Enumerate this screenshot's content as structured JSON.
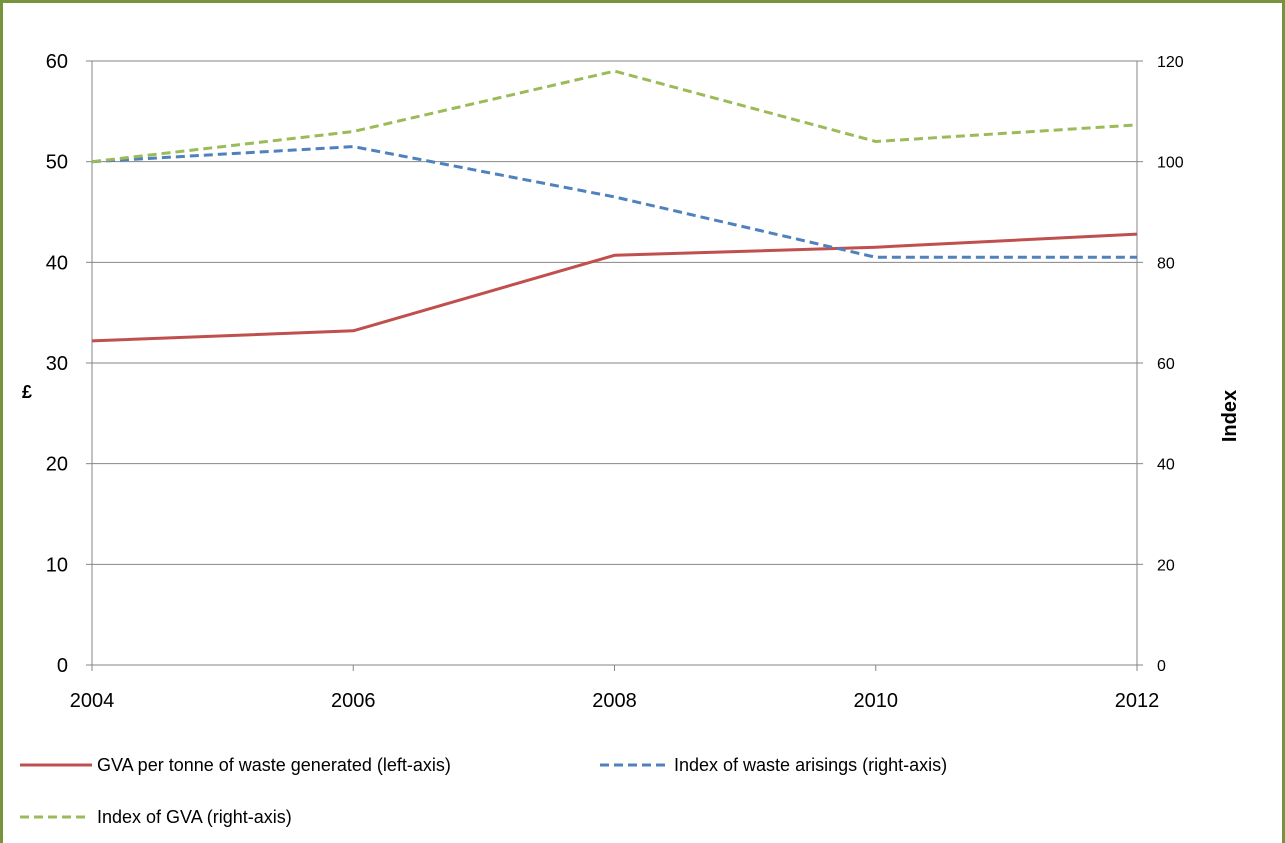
{
  "chart_data": {
    "type": "line",
    "categories": [
      "2004",
      "2006",
      "2008",
      "2010",
      "2012"
    ],
    "x": [
      2004,
      2006,
      2008,
      2010,
      2012
    ],
    "xlim": [
      2004,
      2012
    ],
    "y_left": {
      "label": "£",
      "ylim": [
        0,
        60
      ],
      "ticks": [
        "0",
        "10",
        "20",
        "30",
        "40",
        "50",
        "60"
      ]
    },
    "y_right": {
      "label": "Index",
      "ylim": [
        0,
        120
      ],
      "ticks": [
        "0",
        "20",
        "40",
        "60",
        "80",
        "100",
        "120"
      ]
    },
    "series": [
      {
        "name": "GVA per tonne of waste generated (left-axis)",
        "axis": "left",
        "style": "solid",
        "color": "#c0504d",
        "values": [
          32.2,
          33.2,
          40.7,
          41.5,
          42.8
        ]
      },
      {
        "name": "Index of waste arisings (right-axis)",
        "axis": "right",
        "style": "dashed",
        "color": "#4f81bd",
        "values": [
          100,
          103,
          93,
          81,
          81
        ]
      },
      {
        "name": "Index of GVA (right-axis)",
        "axis": "right",
        "style": "dashed",
        "color": "#9bbb59",
        "values": [
          100,
          106,
          118,
          104,
          107.3
        ]
      }
    ],
    "grid": "horizontal",
    "legend_position": "bottom"
  },
  "frame_color": "#77933c",
  "gridline_color": "#868686"
}
